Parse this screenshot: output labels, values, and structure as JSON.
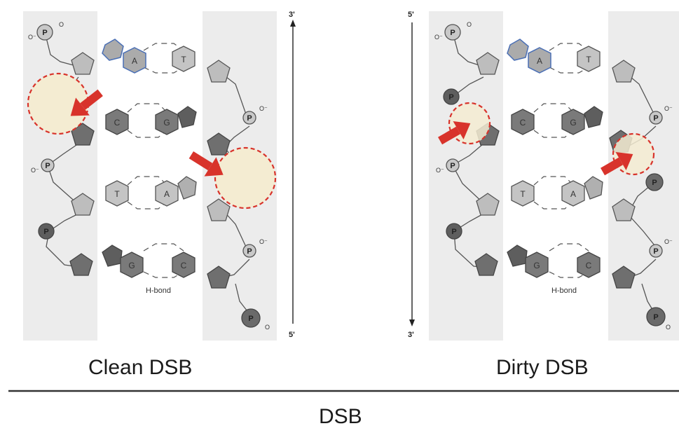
{
  "panels": [
    {
      "key": "clean",
      "caption": "Clean DSB",
      "top_end_label": "3'",
      "bottom_end_label": "5'",
      "arrow_direction": "up",
      "bases": [
        {
          "left": "A",
          "right": "T"
        },
        {
          "left": "C",
          "right": "G"
        },
        {
          "left": "T",
          "right": "A"
        },
        {
          "left": "G",
          "right": "C"
        }
      ],
      "phosphate_label": "P",
      "oxygen_label": "O",
      "oxygen_minus_label": "O⁻",
      "hbond_label": "H-bond"
    },
    {
      "key": "dirty",
      "caption": "Dirty DSB",
      "top_end_label": "5'",
      "bottom_end_label": "3'",
      "arrow_direction": "down",
      "bases": [
        {
          "left": "A",
          "right": "T"
        },
        {
          "left": "C",
          "right": "G"
        },
        {
          "left": "T",
          "right": "A"
        },
        {
          "left": "G",
          "right": "C"
        }
      ],
      "phosphate_label": "P",
      "oxygen_label": "O",
      "oxygen_minus_label": "O⁻",
      "hbond_label": "H-bond"
    }
  ],
  "bottom_title": "DSB",
  "colors": {
    "backbone_band": "#ececec",
    "damage_fill": "#f4ecd2",
    "damage_stroke": "#d8332b",
    "arrow": "#d8332b",
    "purine_outline": "#4a6fb5"
  }
}
